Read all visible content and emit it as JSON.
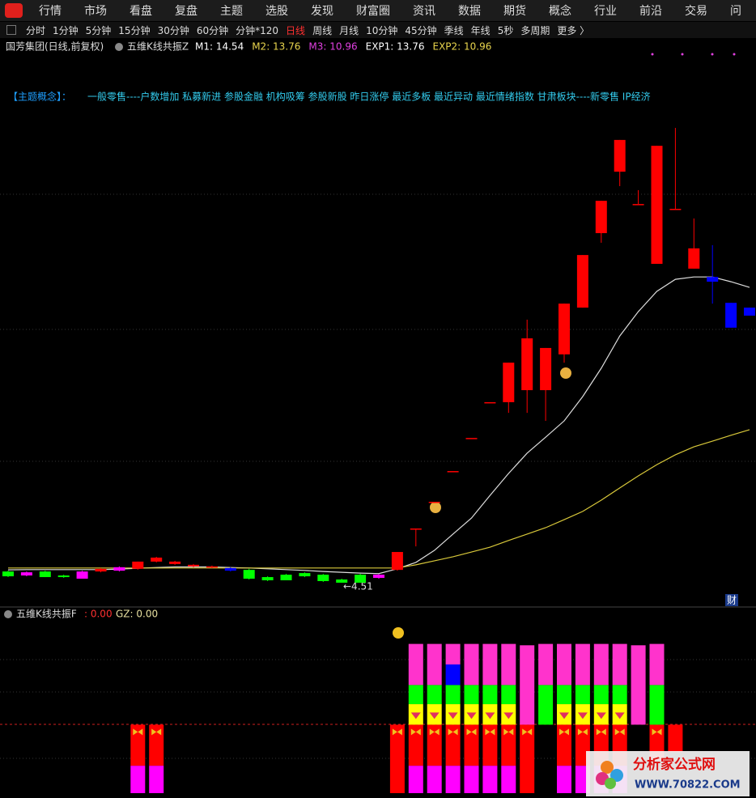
{
  "nav": {
    "items": [
      "行情",
      "市场",
      "看盘",
      "复盘",
      "主题",
      "选股",
      "发现",
      "财富圈",
      "资讯",
      "数据",
      "期货",
      "概念",
      "行业",
      "前沿",
      "交易",
      "问"
    ]
  },
  "periods": {
    "items": [
      "分时",
      "1分钟",
      "5分钟",
      "15分钟",
      "30分钟",
      "60分钟",
      "分钟*120",
      "日线",
      "周线",
      "月线",
      "10分钟",
      "45分钟",
      "季线",
      "年线",
      "5秒",
      "多周期",
      "更多 〉"
    ],
    "active": 7
  },
  "main": {
    "stock": "国芳集团(日线,前复权)",
    "indicator": "五维K线共振Z",
    "params": [
      {
        "text": "M1: 14.54",
        "color": "#ffffff"
      },
      {
        "text": "M2: 13.76",
        "color": "#e8d44d"
      },
      {
        "text": "M3: 10.96",
        "color": "#e040e0"
      },
      {
        "text": "EXP1: 13.76",
        "color": "#ffffff"
      },
      {
        "text": "EXP2: 10.96",
        "color": "#e8d44d"
      }
    ],
    "concept": {
      "label": "【主题概念】：",
      "content": "一般零售----户数增加 私募新进 参股金融 机构吸筹 参股新股 昨日涨停 最近多板 最近异动 最近情绪指数 甘肃板块----新零售 IP经济"
    },
    "low_label": "←4.51",
    "ylim": [
      3.6,
      24.36
    ],
    "candles": [
      {
        "open": 4.93,
        "close": 4.75,
        "high": 4.96,
        "low": 4.72,
        "color": "#00ff00"
      },
      {
        "open": 4.9,
        "close": 4.78,
        "high": 4.93,
        "low": 4.75,
        "color": "#ff00ff"
      },
      {
        "open": 4.93,
        "close": 4.72,
        "high": 4.96,
        "low": 4.72,
        "color": "#00ff00"
      },
      {
        "open": 4.78,
        "close": 4.72,
        "high": 4.81,
        "low": 4.69,
        "color": "#00ff00"
      },
      {
        "open": 4.93,
        "close": 4.66,
        "high": 4.96,
        "low": 4.66,
        "color": "#ff00ff"
      },
      {
        "open": 4.93,
        "close": 5.03,
        "high": 5.06,
        "low": 4.9,
        "color": "#ff0000"
      },
      {
        "open": 5.09,
        "close": 4.96,
        "high": 5.12,
        "low": 4.93,
        "color": "#ff00ff"
      },
      {
        "open": 5.03,
        "close": 5.3,
        "high": 5.3,
        "low": 5.0,
        "color": "#ff0000"
      },
      {
        "open": 5.3,
        "close": 5.45,
        "high": 5.48,
        "low": 5.27,
        "color": "#ff0000"
      },
      {
        "open": 5.21,
        "close": 5.3,
        "high": 5.33,
        "low": 5.18,
        "color": "#ff0000"
      },
      {
        "open": 5.12,
        "close": 5.18,
        "high": 5.21,
        "low": 5.09,
        "color": "#ff0000"
      },
      {
        "open": 5.09,
        "close": 5.12,
        "high": 5.15,
        "low": 5.06,
        "color": "#ff0000"
      },
      {
        "open": 5.06,
        "close": 4.96,
        "high": 5.09,
        "low": 4.93,
        "color": "#0000ff"
      },
      {
        "open": 4.99,
        "close": 4.66,
        "high": 5.03,
        "low": 4.63,
        "color": "#00ff00"
      },
      {
        "open": 4.72,
        "close": 4.6,
        "high": 4.75,
        "low": 4.57,
        "color": "#00ff00"
      },
      {
        "open": 4.81,
        "close": 4.6,
        "high": 4.84,
        "low": 4.6,
        "color": "#00ff00"
      },
      {
        "open": 4.87,
        "close": 4.75,
        "high": 4.9,
        "low": 4.72,
        "color": "#00ff00"
      },
      {
        "open": 4.81,
        "close": 4.57,
        "high": 4.84,
        "low": 4.54,
        "color": "#00ff00"
      },
      {
        "open": 4.63,
        "close": 4.51,
        "high": 4.66,
        "low": 4.51,
        "color": "#00ff00"
      },
      {
        "open": 4.81,
        "close": 4.51,
        "high": 4.84,
        "low": 4.51,
        "color": "#00ff00"
      },
      {
        "open": 4.81,
        "close": 4.69,
        "high": 4.84,
        "low": 4.66,
        "color": "#ff00ff"
      },
      {
        "open": 4.99,
        "close": 5.66,
        "high": 5.66,
        "low": 4.96,
        "color": "#ff0000"
      },
      {
        "open": 6.54,
        "close": 6.54,
        "high": 6.54,
        "low": 5.87,
        "color": "#ff0000"
      },
      {
        "open": 7.54,
        "close": 7.54,
        "high": 7.54,
        "low": 7.54,
        "color": "#ff0000"
      },
      {
        "open": 8.69,
        "close": 8.69,
        "high": 8.69,
        "low": 8.69,
        "color": "#ff0000"
      },
      {
        "open": 9.93,
        "close": 9.93,
        "high": 9.93,
        "low": 9.93,
        "color": "#ff0000"
      },
      {
        "open": 11.27,
        "close": 11.27,
        "high": 11.27,
        "low": 11.27,
        "color": "#ff0000"
      },
      {
        "open": 11.27,
        "close": 12.75,
        "high": 12.75,
        "low": 10.87,
        "color": "#ff0000"
      },
      {
        "open": 11.72,
        "close": 13.66,
        "high": 14.36,
        "low": 10.87,
        "color": "#ff0000"
      },
      {
        "open": 11.72,
        "close": 13.3,
        "high": 13.3,
        "low": 10.57,
        "color": "#ff0000"
      },
      {
        "open": 13.06,
        "close": 14.96,
        "high": 14.96,
        "low": 12.75,
        "color": "#ff0000"
      },
      {
        "open": 14.81,
        "close": 16.78,
        "high": 16.78,
        "low": 14.81,
        "color": "#ff0000"
      },
      {
        "open": 17.6,
        "close": 18.81,
        "high": 18.81,
        "low": 17.24,
        "color": "#ff0000"
      },
      {
        "open": 19.9,
        "close": 21.09,
        "high": 21.09,
        "low": 19.36,
        "color": "#ff0000"
      },
      {
        "open": 18.69,
        "close": 18.69,
        "high": 19.21,
        "low": 18.69,
        "color": "#ff0000"
      },
      {
        "open": 16.45,
        "close": 20.87,
        "high": 20.87,
        "low": 16.45,
        "color": "#ff0000"
      },
      {
        "open": 18.51,
        "close": 18.51,
        "high": 21.54,
        "low": 18.51,
        "color": "#ff0000"
      },
      {
        "open": 16.27,
        "close": 17.03,
        "high": 18.15,
        "low": 16.27,
        "color": "#ff0000"
      },
      {
        "open": 15.96,
        "close": 15.78,
        "high": 17.15,
        "low": 14.96,
        "color": "#0000ff"
      },
      {
        "open": 14.99,
        "close": 14.06,
        "high": 14.99,
        "low": 14.06,
        "color": "#0000ff"
      },
      {
        "open": 14.81,
        "close": 14.51,
        "high": 14.81,
        "low": 14.51,
        "color": "#0000ff"
      }
    ],
    "lines": [
      {
        "color": "#dddddd",
        "values": [
          4.99,
          5.0,
          5.0,
          5.0,
          5.0,
          5.0,
          5.02,
          5.05,
          5.08,
          5.1,
          5.1,
          5.1,
          5.08,
          5.06,
          5.03,
          5.0,
          4.97,
          4.93,
          4.9,
          4.87,
          4.85,
          5.03,
          5.27,
          5.72,
          6.33,
          6.93,
          7.78,
          8.6,
          9.36,
          9.96,
          10.57,
          11.48,
          12.54,
          13.75,
          14.66,
          15.42,
          15.87,
          15.96,
          15.96,
          15.78,
          15.57
        ]
      },
      {
        "color": "#d8c83a",
        "values": [
          5.06,
          5.06,
          5.06,
          5.06,
          5.06,
          5.06,
          5.06,
          5.06,
          5.06,
          5.06,
          5.06,
          5.06,
          5.06,
          5.06,
          5.06,
          5.06,
          5.06,
          5.06,
          5.06,
          5.06,
          5.06,
          5.06,
          5.18,
          5.33,
          5.48,
          5.66,
          5.84,
          6.09,
          6.33,
          6.57,
          6.87,
          7.18,
          7.6,
          8.06,
          8.51,
          8.93,
          9.3,
          9.6,
          9.81,
          10.03,
          10.24
        ]
      }
    ]
  },
  "lower": {
    "title": "五维K线共振F",
    "value": ": 0.00",
    "gz": "GZ: 0.00",
    "ylim": [
      -2.5,
      3.5
    ],
    "series": [
      {
        "color": "#ff0000",
        "values": [
          null,
          null,
          null,
          null,
          null,
          null,
          null,
          -1.5,
          -1.5,
          null,
          null,
          null,
          null,
          null,
          null,
          null,
          null,
          null,
          null,
          null,
          null,
          -2.5,
          -1.5,
          -1.5,
          -1.5,
          -1.5,
          -1.5,
          -1.5,
          -2.5,
          null,
          -1.5,
          -1.5,
          -1.5,
          -1.5,
          null,
          -1.3,
          -1.0,
          null,
          null,
          null,
          null
        ]
      },
      {
        "color": "#ff00ff",
        "values": [
          null,
          null,
          null,
          null,
          null,
          null,
          null,
          -1,
          -1,
          null,
          null,
          null,
          null,
          null,
          null,
          null,
          null,
          null,
          null,
          null,
          null,
          null,
          -1,
          -1,
          -1,
          -1,
          -1,
          -1,
          null,
          null,
          -1,
          -1,
          -1,
          -1,
          null,
          null,
          null,
          null,
          null,
          null,
          null
        ]
      },
      {
        "color": "#ffff00",
        "values": [
          null,
          null,
          null,
          null,
          null,
          null,
          null,
          null,
          null,
          null,
          null,
          null,
          null,
          null,
          null,
          null,
          null,
          null,
          null,
          null,
          null,
          null,
          0.75,
          0.75,
          0.75,
          0.75,
          0.75,
          0.75,
          null,
          null,
          0.75,
          0.75,
          0.75,
          0.75,
          null,
          null,
          null,
          null,
          null,
          null,
          null
        ]
      },
      {
        "color": "#00ff00",
        "values": [
          null,
          null,
          null,
          null,
          null,
          null,
          null,
          null,
          null,
          null,
          null,
          null,
          null,
          null,
          null,
          null,
          null,
          null,
          null,
          null,
          null,
          null,
          0.7,
          0.7,
          0.7,
          0.7,
          0.7,
          0.7,
          null,
          1.45,
          0.7,
          0.7,
          0.7,
          0.7,
          null,
          1.45,
          null,
          null,
          null,
          null,
          null
        ]
      },
      {
        "color": "#0000ff",
        "values": [
          null,
          null,
          null,
          null,
          null,
          null,
          null,
          null,
          null,
          null,
          null,
          null,
          null,
          null,
          null,
          null,
          null,
          null,
          null,
          null,
          null,
          null,
          null,
          null,
          0.75,
          null,
          null,
          null,
          null,
          null,
          null,
          null,
          null,
          null,
          null,
          null,
          null,
          null,
          null,
          null,
          null
        ]
      },
      {
        "color": "#ff33cc",
        "values": [
          null,
          null,
          null,
          null,
          null,
          null,
          null,
          null,
          null,
          null,
          null,
          null,
          null,
          null,
          null,
          null,
          null,
          null,
          null,
          null,
          null,
          null,
          1.5,
          1.5,
          0.75,
          1.5,
          1.5,
          1.5,
          2.9,
          1.5,
          1.5,
          1.5,
          1.5,
          1.5,
          2.9,
          1.5,
          null,
          null,
          null,
          null,
          null
        ]
      }
    ]
  },
  "badge": "财",
  "watermark": {
    "name": "分析家公式网",
    "url": "WWW.70822.COM"
  }
}
